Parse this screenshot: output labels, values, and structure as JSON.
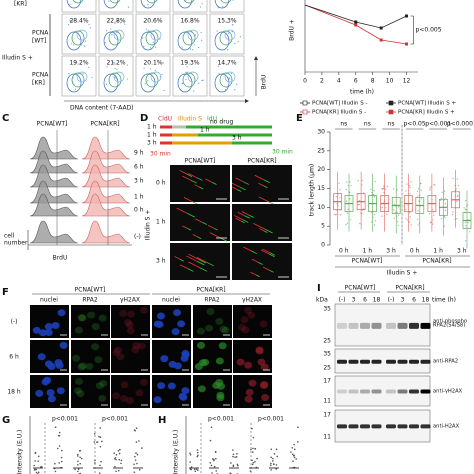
{
  "panel_a": {
    "top_label": "[KR]",
    "side_label": "Illudin S +",
    "rows": [
      {
        "label_lines": [
          "PCNA",
          "[WT]"
        ],
        "percents": [
          "28.4%",
          "22.8%",
          "20.6%",
          "16.8%",
          "15.3%"
        ]
      },
      {
        "label_lines": [
          "PCNA",
          "[KR]"
        ],
        "percents": [
          "19.2%",
          "21.2%",
          "20.1%",
          "19.3%",
          "14.7%"
        ]
      }
    ],
    "x_label": "DNA content (7-AAD)",
    "y_label": "BrdU"
  },
  "panel_b": {
    "y_label": "BrdU +",
    "annotation": "p<0.005",
    "x_label": "time (h)",
    "xlim": [
      0,
      13
    ],
    "xticks": [
      0,
      2,
      4,
      6,
      8,
      10,
      12
    ],
    "legend": [
      "PCNA[WT] Illudin S -",
      "PCNA[KR] Illudin S -",
      "PCNA[WT] Illudin S +",
      "PCNA[KR] Illudin S +"
    ]
  },
  "panel_c": {
    "letter": "C",
    "headers": [
      "PCNA[WT]",
      "PCNA[KR]"
    ],
    "rows": [
      "9 h",
      "6 h",
      "3 h",
      "1 h",
      "0 h",
      "(-)"
    ],
    "y_label_lines": [
      "cell",
      "number"
    ],
    "x_label": "BrdU"
  },
  "panel_d": {
    "letter": "D",
    "labels": [
      "CldU",
      "Illudin S",
      "IdU"
    ],
    "schemes": [
      {
        "left": "1 h",
        "right": "no drug"
      },
      {
        "left": "1 h",
        "right": "1 h"
      },
      {
        "left": "3 h",
        "right": "3 h"
      }
    ],
    "pulse_1": "30 min",
    "pulse_2": "30 min",
    "headers": [
      "PCNA[WT]",
      "PCNA[KR]"
    ],
    "rows": [
      "0 h",
      "1 h",
      "3 h"
    ],
    "side_label": "Illudin S +"
  },
  "panel_e": {
    "letter": "E",
    "type": "box",
    "annotations": [
      "ns",
      "ns",
      "ns",
      "p<0.05",
      "p<0.001",
      "p<0.0001"
    ],
    "y_label": "track length (μm)",
    "ylim": [
      0,
      30
    ],
    "yticks": [
      0,
      5,
      10,
      15,
      20,
      25,
      30
    ],
    "categories": [
      "0 h",
      "1 h",
      "3 h",
      "0 h",
      "1 h",
      "3 h"
    ],
    "groups": [
      "PCNA[WT]",
      "PCNA[KR]"
    ],
    "x_label": "Illudin S +",
    "series": [
      {
        "color": "#e06060",
        "values": [
          11.5,
          11.5,
          11,
          11,
          11,
          12
        ]
      },
      {
        "color": "#5aab5a",
        "values": [
          11,
          11,
          10.5,
          10.5,
          10,
          6.5
        ]
      }
    ]
  },
  "panel_f": {
    "letter": "F",
    "headers": [
      "PCNA[WT]",
      "PCNA[KR]"
    ],
    "columns": [
      "nuclei",
      "RPA2",
      "γH2AX",
      "nuclei",
      "RPA2",
      "γH2AX"
    ],
    "rows": [
      "(-)",
      "6 h",
      "18 h"
    ]
  },
  "panel_g": {
    "letter": "G",
    "annotations": [
      "p<0.001",
      "p<0.001"
    ],
    "y_label": "Intensity (E.U.)"
  },
  "panel_h": {
    "letter": "H",
    "annotations": [
      "p<0.001",
      "p<0.001"
    ],
    "y_label": "Intensity (E.U.)"
  },
  "panel_i": {
    "letter": "I",
    "headers": [
      "PCNA[WT]",
      "PCNA[KR]"
    ],
    "unit": "kDa",
    "lanes": [
      "(-)",
      "3",
      "6",
      "18",
      "(-)",
      "3",
      "6",
      "18"
    ],
    "time_label": "time (h)",
    "blots": [
      {
        "markers": [
          "35",
          "25"
        ],
        "label_lines": [
          "anti-phospho",
          "RPA2(S4/S8)"
        ]
      },
      {
        "markers": [
          "35",
          "25"
        ],
        "label_lines": [
          "anti-RPA2"
        ]
      },
      {
        "markers": [
          "17",
          "11"
        ],
        "label_lines": [
          "anti-γH2AX"
        ]
      },
      {
        "markers": [
          "17",
          "11"
        ],
        "label_lines": [
          "anti-H2AX"
        ]
      }
    ]
  }
}
